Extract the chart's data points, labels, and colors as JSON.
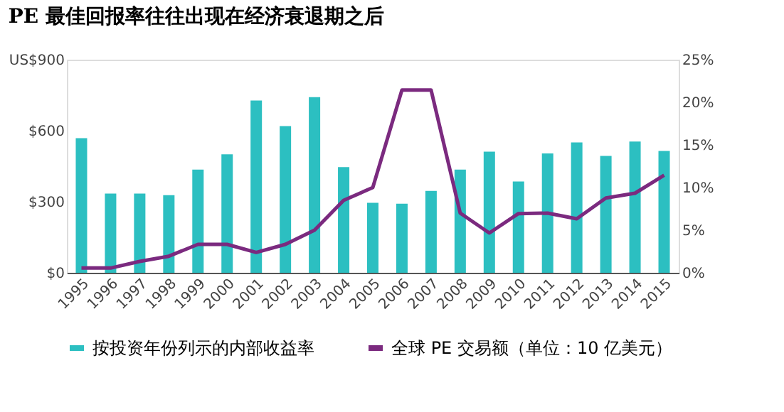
{
  "chart_data": {
    "type": "bar",
    "title": "PE 最佳回报率往往出现在经济衰退期之后",
    "categories": [
      "1995",
      "1996",
      "1997",
      "1998",
      "1999",
      "2000",
      "2001",
      "2002",
      "2003",
      "2004",
      "2005",
      "2006",
      "2007",
      "2008",
      "2009",
      "2010",
      "2011",
      "2012",
      "2013",
      "2014",
      "2015"
    ],
    "series": [
      {
        "name": "按投资年份列示的内部收益率",
        "axis": "y2",
        "color": "#2cbfc1",
        "values": [
          15.8,
          9.3,
          9.3,
          9.1,
          12.1,
          13.9,
          20.2,
          17.2,
          20.6,
          12.4,
          8.2,
          8.1,
          9.6,
          12.1,
          14.2,
          10.7,
          14.0,
          15.3,
          13.7,
          15.4,
          14.3
        ]
      },
      {
        "name": "全球 PE 交易额（单位：10 亿美元）",
        "type": "line",
        "axis": "y",
        "color": "#7b2a7f",
        "values": [
          20,
          20,
          48,
          70,
          120,
          120,
          86,
          120,
          180,
          306,
          360,
          772,
          772,
          252,
          168,
          250,
          252,
          228,
          316,
          336,
          412
        ]
      }
    ],
    "ylim": [
      0,
      900
    ],
    "yticks": [
      {
        "value": 0,
        "label": "$0"
      },
      {
        "value": 300,
        "label": "$300"
      },
      {
        "value": 600,
        "label": "$600"
      },
      {
        "value": 900,
        "label": "US$900"
      }
    ],
    "y2lim": [
      0,
      25
    ],
    "y2ticks": [
      {
        "value": 0,
        "label": "0%"
      },
      {
        "value": 5,
        "label": "5%"
      },
      {
        "value": 10,
        "label": "10%"
      },
      {
        "value": 15,
        "label": "15%"
      },
      {
        "value": 20,
        "label": "20%"
      },
      {
        "value": 25,
        "label": "25%"
      }
    ],
    "grid": false,
    "legend": "bottom",
    "marker": "none",
    "line_style": "solid"
  }
}
